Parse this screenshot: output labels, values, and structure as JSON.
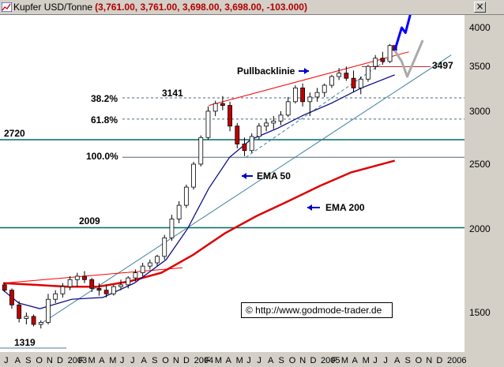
{
  "window": {
    "title_name": "Kupfer USD/Tonne",
    "title_values": "(3,761.00, 3,761.00, 3,698.00, 3,698.00, -103.000)",
    "close_label": "×"
  },
  "copyright": "© http://www.godmode-trader.de",
  "colors": {
    "ema50": "#000080",
    "ema200": "#dd0000",
    "candle_up": "#ffffff",
    "candle_down": "#c00000",
    "trend_support": "#4080a0",
    "resistance": "#ff0000",
    "horizontal_level": "#006868",
    "fib_line": "#4a6a7a",
    "projection_bull": "#0000ff",
    "projection_alt": "#aaaaaa",
    "arrow": "#0000cc"
  },
  "chart_data": {
    "type": "candlestick",
    "title": "Kupfer USD/Tonne",
    "y_scale": "log",
    "ylim": [
      1320,
      4300
    ],
    "y_ticks": [
      1500,
      2000,
      2500,
      3000,
      3500,
      4000
    ],
    "x_range": [
      "2002-07-01",
      "2006-02-01"
    ],
    "x_ticks": [
      {
        "label": "J",
        "date": "2002-07-01"
      },
      {
        "label": "A",
        "date": "2002-08-01"
      },
      {
        "label": "S",
        "date": "2002-09-01"
      },
      {
        "label": "O",
        "date": "2002-10-01"
      },
      {
        "label": "N",
        "date": "2002-11-01"
      },
      {
        "label": "D",
        "date": "2002-12-01"
      },
      {
        "label": "2003",
        "date": "2003-01-01"
      },
      {
        "label": "F",
        "date": "2003-02-01"
      },
      {
        "label": "M",
        "date": "2003-03-01"
      },
      {
        "label": "A",
        "date": "2003-04-01"
      },
      {
        "label": "M",
        "date": "2003-05-01"
      },
      {
        "label": "J",
        "date": "2003-06-01"
      },
      {
        "label": "J",
        "date": "2003-07-01"
      },
      {
        "label": "A",
        "date": "2003-08-01"
      },
      {
        "label": "S",
        "date": "2003-09-01"
      },
      {
        "label": "O",
        "date": "2003-10-01"
      },
      {
        "label": "N",
        "date": "2003-11-01"
      },
      {
        "label": "D",
        "date": "2003-12-01"
      },
      {
        "label": "2004",
        "date": "2004-01-01"
      },
      {
        "label": "F",
        "date": "2004-02-01"
      },
      {
        "label": "M",
        "date": "2004-03-01"
      },
      {
        "label": "A",
        "date": "2004-04-01"
      },
      {
        "label": "M",
        "date": "2004-05-01"
      },
      {
        "label": "J",
        "date": "2004-06-01"
      },
      {
        "label": "J",
        "date": "2004-07-01"
      },
      {
        "label": "A",
        "date": "2004-08-01"
      },
      {
        "label": "S",
        "date": "2004-09-01"
      },
      {
        "label": "O",
        "date": "2004-10-01"
      },
      {
        "label": "N",
        "date": "2004-11-01"
      },
      {
        "label": "D",
        "date": "2004-12-01"
      },
      {
        "label": "2005",
        "date": "2005-01-01"
      },
      {
        "label": "F",
        "date": "2005-02-01"
      },
      {
        "label": "M",
        "date": "2005-03-01"
      },
      {
        "label": "A",
        "date": "2005-04-01"
      },
      {
        "label": "M",
        "date": "2005-05-01"
      },
      {
        "label": "J",
        "date": "2005-06-01"
      },
      {
        "label": "J",
        "date": "2005-07-01"
      },
      {
        "label": "A",
        "date": "2005-08-01"
      },
      {
        "label": "S",
        "date": "2005-09-01"
      },
      {
        "label": "O",
        "date": "2005-10-01"
      },
      {
        "label": "N",
        "date": "2005-11-01"
      },
      {
        "label": "D",
        "date": "2005-12-01"
      },
      {
        "label": "2006",
        "date": "2006-01-01"
      }
    ],
    "grid": false,
    "candles": [
      {
        "date": "2002-07-05",
        "o": 1650,
        "h": 1660,
        "l": 1610,
        "c": 1620
      },
      {
        "date": "2002-07-26",
        "o": 1620,
        "h": 1630,
        "l": 1520,
        "c": 1540
      },
      {
        "date": "2002-08-16",
        "o": 1540,
        "h": 1560,
        "l": 1450,
        "c": 1470
      },
      {
        "date": "2002-09-06",
        "o": 1470,
        "h": 1500,
        "l": 1440,
        "c": 1480
      },
      {
        "date": "2002-09-27",
        "o": 1480,
        "h": 1490,
        "l": 1430,
        "c": 1440
      },
      {
        "date": "2002-10-18",
        "o": 1440,
        "h": 1460,
        "l": 1420,
        "c": 1450
      },
      {
        "date": "2002-11-08",
        "o": 1450,
        "h": 1600,
        "l": 1440,
        "c": 1570
      },
      {
        "date": "2002-11-29",
        "o": 1570,
        "h": 1620,
        "l": 1550,
        "c": 1600
      },
      {
        "date": "2002-12-20",
        "o": 1600,
        "h": 1660,
        "l": 1580,
        "c": 1640
      },
      {
        "date": "2003-01-10",
        "o": 1640,
        "h": 1700,
        "l": 1620,
        "c": 1680
      },
      {
        "date": "2003-01-31",
        "o": 1680,
        "h": 1720,
        "l": 1640,
        "c": 1700
      },
      {
        "date": "2003-02-21",
        "o": 1700,
        "h": 1730,
        "l": 1660,
        "c": 1680
      },
      {
        "date": "2003-03-14",
        "o": 1680,
        "h": 1690,
        "l": 1610,
        "c": 1630
      },
      {
        "date": "2003-04-04",
        "o": 1630,
        "h": 1660,
        "l": 1590,
        "c": 1620
      },
      {
        "date": "2003-04-25",
        "o": 1620,
        "h": 1650,
        "l": 1580,
        "c": 1600
      },
      {
        "date": "2003-05-16",
        "o": 1600,
        "h": 1650,
        "l": 1590,
        "c": 1640
      },
      {
        "date": "2003-06-06",
        "o": 1640,
        "h": 1680,
        "l": 1620,
        "c": 1650
      },
      {
        "date": "2003-06-27",
        "o": 1650,
        "h": 1700,
        "l": 1630,
        "c": 1690
      },
      {
        "date": "2003-07-18",
        "o": 1690,
        "h": 1740,
        "l": 1670,
        "c": 1720
      },
      {
        "date": "2003-08-08",
        "o": 1720,
        "h": 1780,
        "l": 1700,
        "c": 1760
      },
      {
        "date": "2003-08-29",
        "o": 1760,
        "h": 1800,
        "l": 1740,
        "c": 1780
      },
      {
        "date": "2003-09-19",
        "o": 1780,
        "h": 1830,
        "l": 1760,
        "c": 1820
      },
      {
        "date": "2003-10-10",
        "o": 1820,
        "h": 1960,
        "l": 1800,
        "c": 1940
      },
      {
        "date": "2003-10-31",
        "o": 1940,
        "h": 2100,
        "l": 1920,
        "c": 2070
      },
      {
        "date": "2003-11-21",
        "o": 2070,
        "h": 2200,
        "l": 2040,
        "c": 2170
      },
      {
        "date": "2003-12-12",
        "o": 2170,
        "h": 2330,
        "l": 2150,
        "c": 2310
      },
      {
        "date": "2004-01-02",
        "o": 2310,
        "h": 2520,
        "l": 2290,
        "c": 2500
      },
      {
        "date": "2004-01-23",
        "o": 2500,
        "h": 2760,
        "l": 2480,
        "c": 2740
      },
      {
        "date": "2004-02-13",
        "o": 2740,
        "h": 3050,
        "l": 2720,
        "c": 3000
      },
      {
        "date": "2004-03-05",
        "o": 3000,
        "h": 3110,
        "l": 2950,
        "c": 3080
      },
      {
        "date": "2004-03-26",
        "o": 3080,
        "h": 3160,
        "l": 3010,
        "c": 3060
      },
      {
        "date": "2004-04-16",
        "o": 3060,
        "h": 3100,
        "l": 2800,
        "c": 2850
      },
      {
        "date": "2004-05-07",
        "o": 2850,
        "h": 2880,
        "l": 2640,
        "c": 2680
      },
      {
        "date": "2004-05-28",
        "o": 2680,
        "h": 2740,
        "l": 2570,
        "c": 2620
      },
      {
        "date": "2004-06-18",
        "o": 2620,
        "h": 2780,
        "l": 2600,
        "c": 2750
      },
      {
        "date": "2004-07-09",
        "o": 2750,
        "h": 2880,
        "l": 2720,
        "c": 2850
      },
      {
        "date": "2004-07-30",
        "o": 2850,
        "h": 2920,
        "l": 2800,
        "c": 2880
      },
      {
        "date": "2004-08-20",
        "o": 2880,
        "h": 2950,
        "l": 2820,
        "c": 2900
      },
      {
        "date": "2004-09-10",
        "o": 2900,
        "h": 3000,
        "l": 2860,
        "c": 2960
      },
      {
        "date": "2004-10-01",
        "o": 2960,
        "h": 3150,
        "l": 2940,
        "c": 3100
      },
      {
        "date": "2004-10-22",
        "o": 3100,
        "h": 3280,
        "l": 3080,
        "c": 3250
      },
      {
        "date": "2004-11-12",
        "o": 3250,
        "h": 3300,
        "l": 3050,
        "c": 3100
      },
      {
        "date": "2004-12-03",
        "o": 3100,
        "h": 3200,
        "l": 2950,
        "c": 3150
      },
      {
        "date": "2004-12-24",
        "o": 3150,
        "h": 3250,
        "l": 3100,
        "c": 3200
      },
      {
        "date": "2005-01-14",
        "o": 3200,
        "h": 3300,
        "l": 3150,
        "c": 3280
      },
      {
        "date": "2005-02-04",
        "o": 3280,
        "h": 3400,
        "l": 3250,
        "c": 3380
      },
      {
        "date": "2005-02-25",
        "o": 3380,
        "h": 3480,
        "l": 3340,
        "c": 3420
      },
      {
        "date": "2005-03-18",
        "o": 3420,
        "h": 3500,
        "l": 3330,
        "c": 3360
      },
      {
        "date": "2005-04-08",
        "o": 3360,
        "h": 3450,
        "l": 3200,
        "c": 3250
      },
      {
        "date": "2005-04-29",
        "o": 3250,
        "h": 3380,
        "l": 3180,
        "c": 3350
      },
      {
        "date": "2005-05-20",
        "o": 3350,
        "h": 3520,
        "l": 3320,
        "c": 3500
      },
      {
        "date": "2005-06-10",
        "o": 3500,
        "h": 3640,
        "l": 3460,
        "c": 3600
      },
      {
        "date": "2005-07-01",
        "o": 3600,
        "h": 3680,
        "l": 3520,
        "c": 3560
      },
      {
        "date": "2005-07-22",
        "o": 3560,
        "h": 3780,
        "l": 3540,
        "c": 3761
      },
      {
        "date": "2005-08-05",
        "o": 3761,
        "h": 3761,
        "l": 3698,
        "c": 3698
      }
    ],
    "ema50": [
      [
        "2002-07-01",
        1620
      ],
      [
        "2002-08-15",
        1550
      ],
      [
        "2002-10-15",
        1520
      ],
      [
        "2003-01-15",
        1570
      ],
      [
        "2003-04-15",
        1580
      ],
      [
        "2003-07-15",
        1660
      ],
      [
        "2003-10-15",
        1800
      ],
      [
        "2003-12-15",
        2000
      ],
      [
        "2004-02-15",
        2300
      ],
      [
        "2004-04-15",
        2560
      ],
      [
        "2004-06-15",
        2720
      ],
      [
        "2004-09-01",
        2830
      ],
      [
        "2004-11-15",
        2960
      ],
      [
        "2005-02-01",
        3080
      ],
      [
        "2005-05-01",
        3250
      ],
      [
        "2005-08-05",
        3400
      ]
    ],
    "ema200": [
      [
        "2002-07-01",
        1660
      ],
      [
        "2002-10-01",
        1650
      ],
      [
        "2003-01-01",
        1640
      ],
      [
        "2003-04-01",
        1640
      ],
      [
        "2003-07-01",
        1670
      ],
      [
        "2003-10-01",
        1720
      ],
      [
        "2004-01-01",
        1830
      ],
      [
        "2004-04-01",
        1970
      ],
      [
        "2004-07-01",
        2090
      ],
      [
        "2004-10-01",
        2200
      ],
      [
        "2005-01-01",
        2320
      ],
      [
        "2005-04-01",
        2430
      ],
      [
        "2005-08-05",
        2530
      ]
    ],
    "support_lines": [
      {
        "from": [
          "2002-10-15",
          1440
        ],
        "to": [
          "2006-01-15",
          3640
        ]
      },
      {
        "from": [
          "2004-06-01",
          2560
        ],
        "to": [
          "2005-07-20",
          3600
        ]
      }
    ],
    "resistance_lines": [
      {
        "from": [
          "2002-07-01",
          1660
        ],
        "to": [
          "2003-12-01",
          1750
        ]
      },
      {
        "from": [
          "2004-02-15",
          3060
        ],
        "to": [
          "2005-09-15",
          3680
        ]
      }
    ],
    "horizontal_levels": [
      {
        "value": 2720,
        "label": "2720",
        "style": "solid"
      },
      {
        "value": 2009,
        "label": "2009",
        "style": "solid"
      },
      {
        "value": 3497,
        "label": "3497",
        "style": "short"
      }
    ],
    "fibonacci": {
      "high_label": "3141",
      "low_label": "1319",
      "levels": [
        {
          "label": "38.2%",
          "value": 3141
        },
        {
          "label": "61.8%",
          "value": 2920
        },
        {
          "label": "100.0%",
          "value": 2560
        }
      ]
    },
    "projections": [
      {
        "name": "bull",
        "points": [
          [
            "2005-08-05",
            3698
          ],
          [
            "2005-08-25",
            4000
          ],
          [
            "2005-09-05",
            3930
          ],
          [
            "2005-09-25",
            4300
          ]
        ]
      },
      {
        "name": "alt",
        "points": [
          [
            "2005-08-05",
            3698
          ],
          [
            "2005-08-25",
            3560
          ],
          [
            "2005-09-10",
            3380
          ],
          [
            "2005-10-25",
            3830
          ]
        ]
      }
    ],
    "annotations": [
      {
        "text": "Pullbacklinie",
        "arrow": "right"
      },
      {
        "text": "EMA 50",
        "arrow": "left"
      },
      {
        "text": "EMA 200",
        "arrow": "left"
      }
    ]
  }
}
